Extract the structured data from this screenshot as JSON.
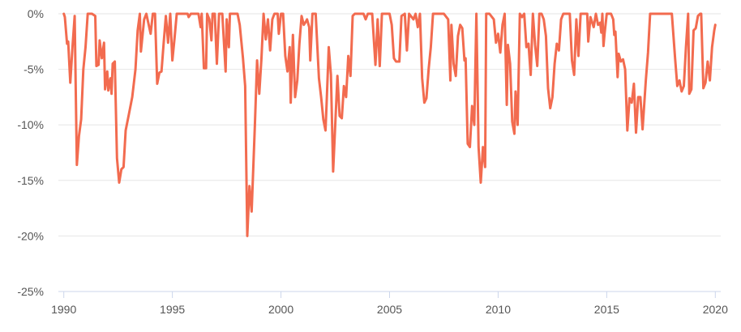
{
  "chart_data": {
    "type": "line",
    "title": "",
    "xlabel": "",
    "ylabel": "",
    "xlim": [
      1989.75,
      2020.25
    ],
    "ylim": [
      -25,
      0
    ],
    "x_ticks": [
      "1990",
      "1995",
      "2000",
      "2005",
      "2010",
      "2015",
      "2020"
    ],
    "y_ticks": [
      "0%",
      "-5%",
      "-10%",
      "-15%",
      "-20%",
      "-25%"
    ],
    "grid": true,
    "legend": "none",
    "line_color": "#f26b4f",
    "series": [
      {
        "values": [
          [
            1990.0,
            0
          ],
          [
            1990.05,
            -0.3
          ],
          [
            1990.15,
            -2.7
          ],
          [
            1990.2,
            -2.5
          ],
          [
            1990.3,
            -6.2
          ],
          [
            1990.4,
            -3
          ],
          [
            1990.5,
            -0.2
          ],
          [
            1990.6,
            -13.6
          ],
          [
            1990.7,
            -11
          ],
          [
            1990.8,
            -9.5
          ],
          [
            1990.9,
            -5
          ],
          [
            1991.0,
            -3
          ],
          [
            1991.1,
            0
          ],
          [
            1991.3,
            0
          ],
          [
            1991.45,
            -0.2
          ],
          [
            1991.5,
            -4.7
          ],
          [
            1991.6,
            -4.6
          ],
          [
            1991.65,
            -2.4
          ],
          [
            1991.75,
            -4
          ],
          [
            1991.85,
            -2.6
          ],
          [
            1991.9,
            -6.8
          ],
          [
            1992.0,
            -5.2
          ],
          [
            1992.05,
            -6.9
          ],
          [
            1992.15,
            -5.8
          ],
          [
            1992.2,
            -7.2
          ],
          [
            1992.25,
            -4.5
          ],
          [
            1992.35,
            -4.3
          ],
          [
            1992.45,
            -13
          ],
          [
            1992.55,
            -15.2
          ],
          [
            1992.65,
            -14
          ],
          [
            1992.75,
            -13.8
          ],
          [
            1992.85,
            -10.5
          ],
          [
            1993.0,
            -9
          ],
          [
            1993.15,
            -7.5
          ],
          [
            1993.3,
            -5
          ],
          [
            1993.4,
            -1.5
          ],
          [
            1993.5,
            0
          ],
          [
            1993.55,
            -3.4
          ],
          [
            1993.7,
            -0.5
          ],
          [
            1993.8,
            0
          ],
          [
            1994.0,
            -1.8
          ],
          [
            1994.1,
            0
          ],
          [
            1994.2,
            0
          ],
          [
            1994.3,
            -6.3
          ],
          [
            1994.4,
            -5.3
          ],
          [
            1994.5,
            -5.2
          ],
          [
            1994.6,
            -2.6
          ],
          [
            1994.7,
            -0.2
          ],
          [
            1994.8,
            -2.6
          ],
          [
            1994.9,
            0
          ],
          [
            1995.0,
            -4.2
          ],
          [
            1995.1,
            -2.2
          ],
          [
            1995.2,
            0
          ],
          [
            1995.4,
            0
          ],
          [
            1995.7,
            0
          ],
          [
            1995.75,
            -0.3
          ],
          [
            1995.85,
            0
          ],
          [
            1996.2,
            0
          ],
          [
            1996.3,
            -1.2
          ],
          [
            1996.35,
            0
          ],
          [
            1996.45,
            -4.9
          ],
          [
            1996.55,
            -4.9
          ],
          [
            1996.6,
            0
          ],
          [
            1996.7,
            -0.5
          ],
          [
            1996.8,
            -2.4
          ],
          [
            1996.85,
            0
          ],
          [
            1996.95,
            0
          ],
          [
            1997.05,
            -4.5
          ],
          [
            1997.15,
            0
          ],
          [
            1997.3,
            0
          ],
          [
            1997.45,
            -5.2
          ],
          [
            1997.5,
            -0.5
          ],
          [
            1997.6,
            -3
          ],
          [
            1997.65,
            0
          ],
          [
            1997.8,
            0
          ],
          [
            1998.0,
            0
          ],
          [
            1998.1,
            -1
          ],
          [
            1998.25,
            -4
          ],
          [
            1998.35,
            -6.5
          ],
          [
            1998.45,
            -20
          ],
          [
            1998.55,
            -15.5
          ],
          [
            1998.65,
            -17.8
          ],
          [
            1998.8,
            -10
          ],
          [
            1998.9,
            -4.2
          ],
          [
            1999.0,
            -7.2
          ],
          [
            1999.1,
            -4
          ],
          [
            1999.2,
            0
          ],
          [
            1999.3,
            -2.3
          ],
          [
            1999.4,
            -0.5
          ],
          [
            1999.5,
            -3.3
          ],
          [
            1999.6,
            -0.5
          ],
          [
            1999.7,
            0
          ],
          [
            1999.85,
            0
          ],
          [
            1999.9,
            -1.8
          ],
          [
            2000.0,
            0
          ],
          [
            2000.1,
            0
          ],
          [
            2000.2,
            -3.8
          ],
          [
            2000.3,
            -5.2
          ],
          [
            2000.4,
            -3
          ],
          [
            2000.45,
            -8
          ],
          [
            2000.55,
            -1.9
          ],
          [
            2000.65,
            -7.5
          ],
          [
            2000.75,
            -6
          ],
          [
            2000.85,
            -2.7
          ],
          [
            2000.95,
            -0.2
          ],
          [
            2001.05,
            -1
          ],
          [
            2001.15,
            -0.7
          ],
          [
            2001.2,
            -0.5
          ],
          [
            2001.3,
            -1.2
          ],
          [
            2001.35,
            -4.2
          ],
          [
            2001.45,
            0
          ],
          [
            2001.6,
            0
          ],
          [
            2001.75,
            -5.8
          ],
          [
            2001.85,
            -7.5
          ],
          [
            2001.95,
            -9.5
          ],
          [
            2002.05,
            -10.5
          ],
          [
            2002.1,
            -8.2
          ],
          [
            2002.2,
            -3
          ],
          [
            2002.3,
            -5.5
          ],
          [
            2002.4,
            -14.2
          ],
          [
            2002.5,
            -10
          ],
          [
            2002.6,
            -5.6
          ],
          [
            2002.7,
            -9.2
          ],
          [
            2002.8,
            -9.4
          ],
          [
            2002.9,
            -6.5
          ],
          [
            2003.0,
            -7.5
          ],
          [
            2003.1,
            -3.8
          ],
          [
            2003.2,
            -5.6
          ],
          [
            2003.3,
            -0.2
          ],
          [
            2003.4,
            0
          ],
          [
            2003.8,
            0
          ],
          [
            2003.9,
            -0.5
          ],
          [
            2004.0,
            0
          ],
          [
            2004.2,
            0
          ],
          [
            2004.35,
            -4.6
          ],
          [
            2004.45,
            -0.5
          ],
          [
            2004.55,
            -4.7
          ],
          [
            2004.65,
            0
          ],
          [
            2004.8,
            0
          ],
          [
            2005.0,
            0
          ],
          [
            2005.1,
            -1
          ],
          [
            2005.2,
            -4
          ],
          [
            2005.3,
            -4.3
          ],
          [
            2005.45,
            -4.3
          ],
          [
            2005.55,
            -0.2
          ],
          [
            2005.7,
            0
          ],
          [
            2005.8,
            -3.3
          ],
          [
            2005.9,
            0
          ],
          [
            2006.1,
            -0.5
          ],
          [
            2006.2,
            0
          ],
          [
            2006.3,
            -1.2
          ],
          [
            2006.4,
            0
          ],
          [
            2006.5,
            -5.8
          ],
          [
            2006.6,
            -8
          ],
          [
            2006.7,
            -7.6
          ],
          [
            2006.8,
            -5
          ],
          [
            2006.9,
            -3
          ],
          [
            2007.0,
            0
          ],
          [
            2007.2,
            0
          ],
          [
            2007.5,
            0
          ],
          [
            2007.7,
            -0.5
          ],
          [
            2007.8,
            -6
          ],
          [
            2007.85,
            -1
          ],
          [
            2007.95,
            -4.5
          ],
          [
            2008.05,
            -5.6
          ],
          [
            2008.15,
            -2
          ],
          [
            2008.25,
            -1
          ],
          [
            2008.35,
            -1.3
          ],
          [
            2008.45,
            -4.2
          ],
          [
            2008.5,
            -4
          ],
          [
            2008.6,
            -11.7
          ],
          [
            2008.7,
            -12
          ],
          [
            2008.8,
            -8.3
          ],
          [
            2008.9,
            -10
          ],
          [
            2009.0,
            0
          ],
          [
            2009.1,
            -12
          ],
          [
            2009.2,
            -15.2
          ],
          [
            2009.3,
            -12
          ],
          [
            2009.4,
            -13.8
          ],
          [
            2009.45,
            0
          ],
          [
            2009.6,
            0
          ],
          [
            2009.8,
            -0.5
          ],
          [
            2009.9,
            -2.6
          ],
          [
            2010.0,
            -1.8
          ],
          [
            2010.1,
            -3.5
          ],
          [
            2010.2,
            -1
          ],
          [
            2010.3,
            0
          ],
          [
            2010.4,
            -8.2
          ],
          [
            2010.45,
            -2.8
          ],
          [
            2010.55,
            -4.5
          ],
          [
            2010.65,
            -9.7
          ],
          [
            2010.75,
            -10.8
          ],
          [
            2010.8,
            -7
          ],
          [
            2010.9,
            -10
          ],
          [
            2011.0,
            0
          ],
          [
            2011.1,
            -0.3
          ],
          [
            2011.2,
            0
          ],
          [
            2011.3,
            -3
          ],
          [
            2011.4,
            -2.7
          ],
          [
            2011.5,
            -5.5
          ],
          [
            2011.6,
            0
          ],
          [
            2011.7,
            -2.8
          ],
          [
            2011.8,
            -4.7
          ],
          [
            2011.9,
            0
          ],
          [
            2012.0,
            0
          ],
          [
            2012.1,
            -0.5
          ],
          [
            2012.2,
            -2
          ],
          [
            2012.3,
            -6.7
          ],
          [
            2012.4,
            -8.5
          ],
          [
            2012.5,
            -7.5
          ],
          [
            2012.6,
            -4.5
          ],
          [
            2012.7,
            -2.7
          ],
          [
            2012.8,
            -3.3
          ],
          [
            2012.9,
            -0.5
          ],
          [
            2013.0,
            0
          ],
          [
            2013.3,
            0
          ],
          [
            2013.4,
            -4.2
          ],
          [
            2013.5,
            -5.5
          ],
          [
            2013.6,
            -0.5
          ],
          [
            2013.7,
            -3.8
          ],
          [
            2013.8,
            0
          ],
          [
            2014.1,
            0
          ],
          [
            2014.15,
            -2.5
          ],
          [
            2014.25,
            -0.3
          ],
          [
            2014.4,
            -1.2
          ],
          [
            2014.5,
            0
          ],
          [
            2014.6,
            -1
          ],
          [
            2014.7,
            -0.8
          ],
          [
            2014.75,
            -1.7
          ],
          [
            2014.8,
            0
          ],
          [
            2014.85,
            -2.9
          ],
          [
            2014.9,
            -1.8
          ],
          [
            2015.0,
            0
          ],
          [
            2015.2,
            0
          ],
          [
            2015.3,
            -0.5
          ],
          [
            2015.35,
            -1.9
          ],
          [
            2015.4,
            -1.6
          ],
          [
            2015.5,
            -5.7
          ],
          [
            2015.55,
            -3.6
          ],
          [
            2015.65,
            -4.3
          ],
          [
            2015.75,
            -4.1
          ],
          [
            2015.85,
            -5
          ],
          [
            2015.95,
            -10.5
          ],
          [
            2016.05,
            -7.6
          ],
          [
            2016.15,
            -8
          ],
          [
            2016.25,
            -6.3
          ],
          [
            2016.35,
            -10.7
          ],
          [
            2016.45,
            -7.5
          ],
          [
            2016.55,
            -7.5
          ],
          [
            2016.65,
            -10.4
          ],
          [
            2016.8,
            -6
          ],
          [
            2016.9,
            -3.5
          ],
          [
            2017.0,
            0
          ],
          [
            2017.2,
            0
          ],
          [
            2017.6,
            0
          ],
          [
            2017.85,
            0
          ],
          [
            2018.0,
            0
          ],
          [
            2018.15,
            -4
          ],
          [
            2018.25,
            -6.5
          ],
          [
            2018.35,
            -6
          ],
          [
            2018.45,
            -7
          ],
          [
            2018.55,
            -6.5
          ],
          [
            2018.65,
            -3
          ],
          [
            2018.75,
            0
          ],
          [
            2018.8,
            -7.2
          ],
          [
            2018.9,
            -6.8
          ],
          [
            2019.0,
            -1.5
          ],
          [
            2019.1,
            -1.3
          ],
          [
            2019.2,
            -0.2
          ],
          [
            2019.3,
            0
          ],
          [
            2019.35,
            0
          ],
          [
            2019.45,
            -6.7
          ],
          [
            2019.55,
            -6.2
          ],
          [
            2019.65,
            -4.3
          ],
          [
            2019.75,
            -6
          ],
          [
            2019.85,
            -3
          ],
          [
            2019.95,
            -1.5
          ],
          [
            2020.0,
            -1
          ]
        ]
      }
    ]
  }
}
